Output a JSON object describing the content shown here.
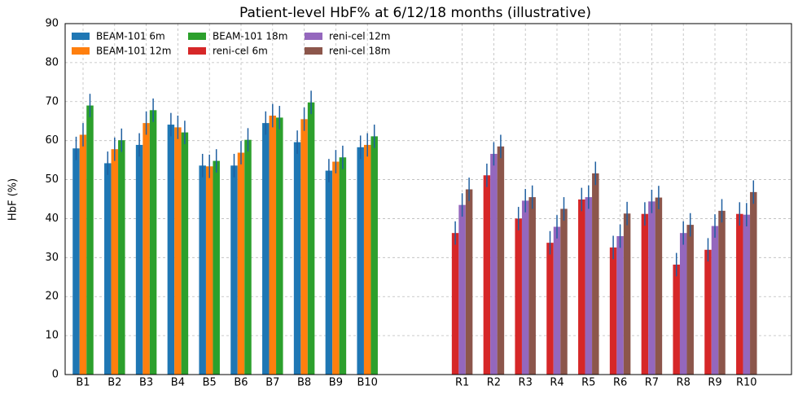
{
  "chart_data": {
    "type": "bar",
    "title": "Patient-level HbF% at 6/12/18 months (illustrative)",
    "y_label": "HbF (%)",
    "categories": [
      "B1",
      "B2",
      "B3",
      "B4",
      "B5",
      "B6",
      "B7",
      "B8",
      "B9",
      "B10",
      null,
      null,
      "R1",
      "R2",
      "R3",
      "R4",
      "R5",
      "R6",
      "R7",
      "R8",
      "R9",
      "R10"
    ],
    "series": [
      {
        "name": "BEAM-101 6m",
        "color": "#1f77b4",
        "values": [
          58.0,
          54.2,
          58.9,
          64.1,
          53.6,
          53.6,
          64.5,
          59.6,
          52.3,
          58.3,
          null,
          null,
          null,
          null,
          null,
          null,
          null,
          null,
          null,
          null,
          null,
          null
        ],
        "errors": [
          3,
          3,
          3,
          3,
          3,
          3,
          3,
          3,
          3,
          3,
          null,
          null,
          null,
          null,
          null,
          null,
          null,
          null,
          null,
          null,
          null,
          null
        ]
      },
      {
        "name": "BEAM-101 12m",
        "color": "#ff7f0e",
        "values": [
          61.5,
          57.8,
          64.5,
          63.4,
          53.4,
          56.9,
          66.4,
          65.5,
          54.6,
          58.9,
          null,
          null,
          null,
          null,
          null,
          null,
          null,
          null,
          null,
          null,
          null,
          null
        ],
        "errors": [
          3,
          3,
          3,
          3,
          3,
          3,
          3,
          3,
          3,
          3,
          null,
          null,
          null,
          null,
          null,
          null,
          null,
          null,
          null,
          null,
          null,
          null
        ]
      },
      {
        "name": "BEAM-101 18m",
        "color": "#2ca02c",
        "values": [
          69.0,
          60.1,
          67.8,
          62.1,
          54.8,
          60.2,
          65.9,
          69.8,
          55.7,
          61.1,
          null,
          null,
          null,
          null,
          null,
          null,
          null,
          null,
          null,
          null,
          null,
          null
        ],
        "errors": [
          3,
          3,
          3,
          3,
          3,
          3,
          3,
          3,
          3,
          3,
          null,
          null,
          null,
          null,
          null,
          null,
          null,
          null,
          null,
          null,
          null,
          null
        ]
      },
      {
        "name": "reni-cel 6m",
        "color": "#d62728",
        "values": [
          null,
          null,
          null,
          null,
          null,
          null,
          null,
          null,
          null,
          null,
          null,
          null,
          36.3,
          51.1,
          40.0,
          33.8,
          44.9,
          32.6,
          41.2,
          28.2,
          32.0,
          41.2
        ],
        "errors": [
          null,
          null,
          null,
          null,
          null,
          null,
          null,
          null,
          null,
          null,
          null,
          null,
          3,
          3,
          3,
          3,
          3,
          3,
          3,
          3,
          3,
          3
        ]
      },
      {
        "name": "reni-cel 12m",
        "color": "#9467bd",
        "values": [
          null,
          null,
          null,
          null,
          null,
          null,
          null,
          null,
          null,
          null,
          null,
          null,
          43.5,
          56.6,
          44.6,
          37.9,
          45.5,
          35.5,
          44.4,
          36.3,
          38.1,
          41.0
        ],
        "errors": [
          null,
          null,
          null,
          null,
          null,
          null,
          null,
          null,
          null,
          null,
          null,
          null,
          3,
          3,
          3,
          3,
          3,
          3,
          3,
          3,
          3,
          3
        ]
      },
      {
        "name": "reni-cel 18m",
        "color": "#8c564b",
        "values": [
          null,
          null,
          null,
          null,
          null,
          null,
          null,
          null,
          null,
          null,
          null,
          null,
          47.5,
          58.5,
          45.5,
          42.5,
          51.6,
          41.3,
          45.4,
          38.4,
          42.0,
          46.8
        ],
        "errors": [
          null,
          null,
          null,
          null,
          null,
          null,
          null,
          null,
          null,
          null,
          null,
          null,
          3,
          3,
          3,
          3,
          3,
          3,
          3,
          3,
          3,
          3
        ]
      }
    ],
    "error_color": "#1f5fa0",
    "ylim": [
      0,
      90
    ],
    "yticks": [
      0,
      10,
      20,
      30,
      40,
      50,
      60,
      70,
      80,
      90
    ],
    "grid": true,
    "legend": "upper left"
  }
}
